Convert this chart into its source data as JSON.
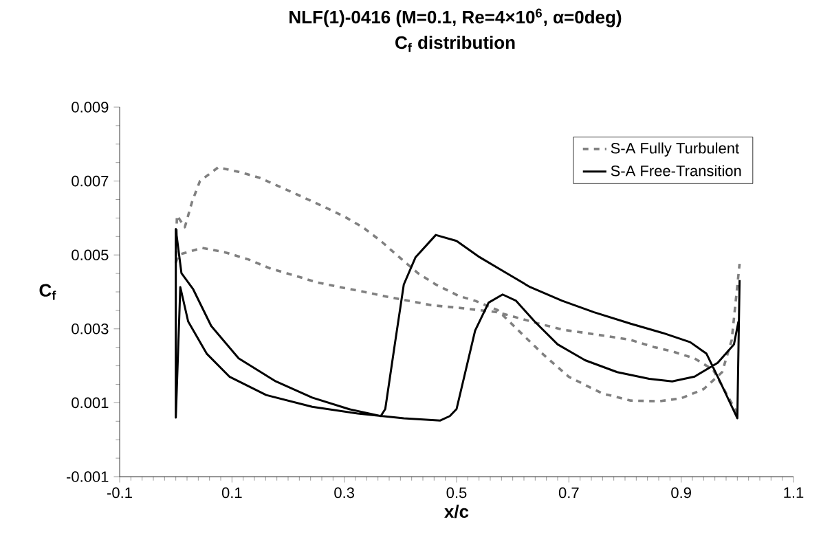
{
  "chart_data": {
    "type": "line",
    "title": "NLF(1)-0416 (M=0.1, Re=4×10$^{6}$, α=0deg)",
    "subtitle": "C$_{f}$ distribution",
    "xlabel": "x/c",
    "ylabel": "C$_{f}$",
    "xlim": [
      -0.1,
      1.1
    ],
    "xticks": [
      -0.1,
      0.1,
      0.3,
      0.5,
      0.7,
      0.9,
      1.1
    ],
    "ylim": [
      -0.001,
      0.009
    ],
    "yticks": [
      -0.001,
      0.001,
      0.003,
      0.005,
      0.007,
      0.009
    ],
    "grid": false,
    "legend": "top right",
    "marker": "none",
    "series": [
      {
        "name": "S-A Fully Turbulent",
        "color": "#808080",
        "line_style": "dashed",
        "x": [
          1.0,
          0.957,
          0.924,
          0.884,
          0.851,
          0.81,
          0.769,
          0.729,
          0.688,
          0.647,
          0.573,
          0.504,
          0.455,
          0.414,
          0.373,
          0.333,
          0.292,
          0.251,
          0.21,
          0.169,
          0.129,
          0.088,
          0.047,
          0.006,
          0.0,
          0.002,
          0.016,
          0.029,
          0.043,
          0.0755,
          0.112,
          0.149,
          0.186,
          0.227,
          0.263,
          0.3,
          0.333,
          0.365,
          0.398,
          0.431,
          0.463,
          0.504,
          0.533,
          0.573,
          0.614,
          0.655,
          0.7,
          0.76,
          0.81,
          0.86,
          0.9,
          0.94,
          0.973,
          0.99,
          1.004
        ],
        "values": [
          0.00071,
          0.00189,
          0.0022,
          0.00239,
          0.00251,
          0.0027,
          0.0028,
          0.00289,
          0.00298,
          0.00314,
          0.00345,
          0.00357,
          0.00364,
          0.00376,
          0.00388,
          0.00401,
          0.00413,
          0.00426,
          0.00445,
          0.00463,
          0.00488,
          0.00507,
          0.00519,
          0.00501,
          0.0048,
          0.00607,
          0.00575,
          0.00644,
          0.007,
          0.00737,
          0.00725,
          0.00709,
          0.00684,
          0.00656,
          0.00631,
          0.00604,
          0.00575,
          0.00538,
          0.00494,
          0.00451,
          0.0042,
          0.00389,
          0.00376,
          0.00351,
          0.0029,
          0.0023,
          0.0017,
          0.00125,
          0.00106,
          0.00104,
          0.00112,
          0.00137,
          0.00183,
          0.0027,
          0.00476
        ]
      },
      {
        "name": "S-A Free-Transition",
        "color": "#000000",
        "line_style": "solid",
        "x": [
          1.002,
          0.994,
          0.965,
          0.924,
          0.884,
          0.843,
          0.786,
          0.729,
          0.68,
          0.639,
          0.606,
          0.582,
          0.557,
          0.533,
          0.5,
          0.488,
          0.471,
          0.406,
          0.324,
          0.243,
          0.161,
          0.096,
          0.055,
          0.022,
          0.008,
          0.0,
          0.0,
          0.01,
          0.031,
          0.063,
          0.112,
          0.178,
          0.243,
          0.308,
          0.365,
          0.373,
          0.39,
          0.406,
          0.427,
          0.463,
          0.5,
          0.541,
          0.582,
          0.631,
          0.688,
          0.745,
          0.81,
          0.867,
          0.916,
          0.945,
          0.969,
          1.0,
          1.004
        ],
        "values": [
          0.0032,
          0.00258,
          0.00208,
          0.00171,
          0.00158,
          0.00165,
          0.00183,
          0.00215,
          0.00258,
          0.0032,
          0.00376,
          0.00393,
          0.00371,
          0.00295,
          0.00083,
          0.00064,
          0.00052,
          0.00058,
          0.00071,
          0.00089,
          0.00121,
          0.0017,
          0.00233,
          0.0032,
          0.00413,
          0.0006,
          0.0057,
          0.00451,
          0.00407,
          0.00308,
          0.0022,
          0.00158,
          0.00114,
          0.00083,
          0.00064,
          0.00083,
          0.00258,
          0.0042,
          0.00494,
          0.00554,
          0.00538,
          0.00494,
          0.00457,
          0.00413,
          0.00376,
          0.00345,
          0.00314,
          0.00289,
          0.00264,
          0.00233,
          0.00158,
          0.00058,
          0.00432
        ]
      }
    ]
  }
}
